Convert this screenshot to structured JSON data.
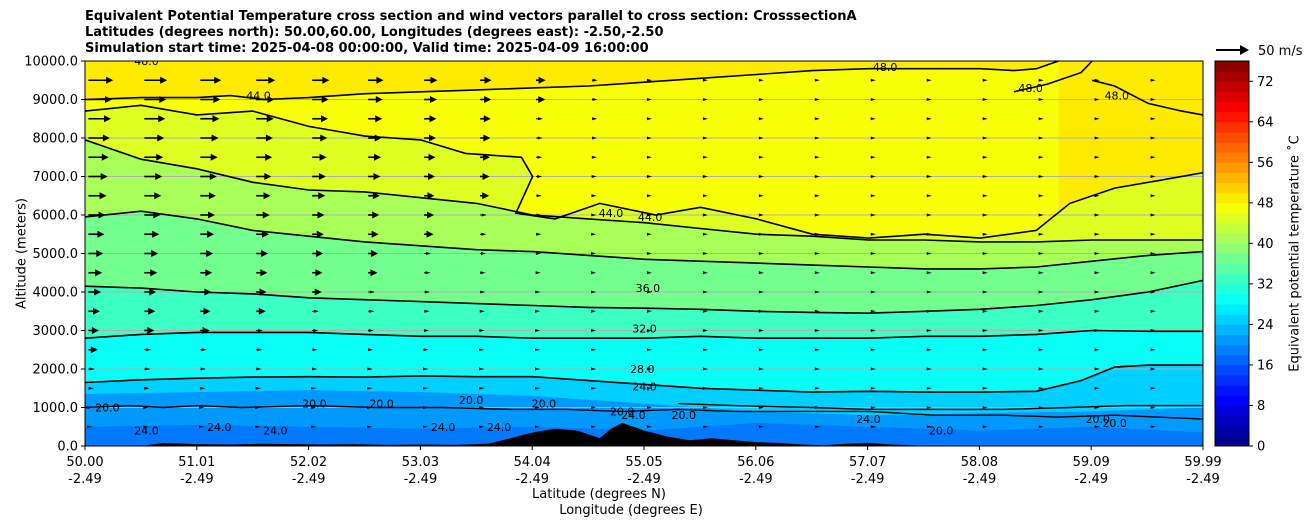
{
  "chart_data": {
    "type": "contourf",
    "title_lines": [
      "Equivalent Potential Temperature cross section and wind vectors parallel to cross section: CrosssectionA",
      "Latitudes (degrees north): 50.00,60.00, Longitudes (degrees east): -2.50,-2.50",
      "Simulation start time: 2025-04-08 00:00:00, Valid time: 2025-04-09 16:00:00"
    ],
    "ylabel": "Altitude (meters)",
    "xlabel_lines": [
      "Latitude (degrees N)",
      "Longitude (degrees E)"
    ],
    "ylim": [
      0,
      10000
    ],
    "xlim": [
      50.0,
      59.99
    ],
    "y_ticks": [
      "0.0",
      "1000.0",
      "2000.0",
      "3000.0",
      "4000.0",
      "5000.0",
      "6000.0",
      "7000.0",
      "8000.0",
      "9000.0",
      "10000.0"
    ],
    "x_ticks": [
      {
        "lat": "50.00",
        "lon": "-2.49"
      },
      {
        "lat": "51.01",
        "lon": "-2.49"
      },
      {
        "lat": "52.02",
        "lon": "-2.49"
      },
      {
        "lat": "53.03",
        "lon": "-2.49"
      },
      {
        "lat": "54.04",
        "lon": "-2.49"
      },
      {
        "lat": "55.05",
        "lon": "-2.49"
      },
      {
        "lat": "56.06",
        "lon": "-2.49"
      },
      {
        "lat": "57.07",
        "lon": "-2.49"
      },
      {
        "lat": "58.08",
        "lon": "-2.49"
      },
      {
        "lat": "59.09",
        "lon": "-2.49"
      },
      {
        "lat": "59.99",
        "lon": "-2.49"
      }
    ],
    "grid": "horizontal",
    "colorbar": {
      "label": "Equivalent potential temperature ˚C",
      "ticks": [
        "0",
        "8",
        "16",
        "24",
        "32",
        "40",
        "48",
        "56",
        "64",
        "72"
      ],
      "range": [
        0,
        76
      ],
      "colormap": "jet"
    },
    "quiver_key": {
      "label": "50 m/s"
    },
    "contour_levels_labeled": [
      {
        "text": "20.0",
        "x": 50.2,
        "alt": 1000
      },
      {
        "text": "24.0",
        "x": 50.55,
        "alt": 400
      },
      {
        "text": "24.0",
        "x": 51.2,
        "alt": 500
      },
      {
        "text": "24.0",
        "x": 51.7,
        "alt": 400
      },
      {
        "text": "20.0",
        "x": 52.05,
        "alt": 1100
      },
      {
        "text": "20.0",
        "x": 52.65,
        "alt": 1100
      },
      {
        "text": "24.0",
        "x": 53.2,
        "alt": 500
      },
      {
        "text": "20.0",
        "x": 53.45,
        "alt": 1200
      },
      {
        "text": "24.0",
        "x": 53.7,
        "alt": 500
      },
      {
        "text": "20.0",
        "x": 54.1,
        "alt": 1100
      },
      {
        "text": "20.0",
        "x": 54.8,
        "alt": 900
      },
      {
        "text": "24.0",
        "x": 54.9,
        "alt": 800
      },
      {
        "text": "20.0",
        "x": 55.35,
        "alt": 800
      },
      {
        "text": "24.0",
        "x": 57.0,
        "alt": 700
      },
      {
        "text": "20.0",
        "x": 57.65,
        "alt": 400
      },
      {
        "text": "20.0",
        "x": 59.05,
        "alt": 700
      },
      {
        "text": "20.0",
        "x": 59.2,
        "alt": 600
      },
      {
        "text": "24.0",
        "x": 55.0,
        "alt": 1550
      },
      {
        "text": "28.0",
        "x": 54.98,
        "alt": 2000
      },
      {
        "text": "32.0",
        "x": 55.0,
        "alt": 3050
      },
      {
        "text": "36.0",
        "x": 55.03,
        "alt": 4100
      },
      {
        "text": "44.0",
        "x": 54.7,
        "alt": 6050
      },
      {
        "text": "44.0",
        "x": 55.05,
        "alt": 5950
      },
      {
        "text": "44.0",
        "x": 51.55,
        "alt": 9100
      },
      {
        "text": "48.0",
        "x": 50.55,
        "alt": 10000
      },
      {
        "text": "48.0",
        "x": 57.15,
        "alt": 9850
      },
      {
        "text": "48.0",
        "x": 58.45,
        "alt": 9300
      },
      {
        "text": "48.0",
        "x": 59.22,
        "alt": 9100
      }
    ],
    "contour_lines": [
      {
        "level": 24,
        "points": [
          [
            50.0,
            1650
          ],
          [
            50.5,
            1720
          ],
          [
            51.0,
            1760
          ],
          [
            51.5,
            1790
          ],
          [
            52.0,
            1800
          ],
          [
            52.5,
            1790
          ],
          [
            53.0,
            1820
          ],
          [
            53.5,
            1800
          ],
          [
            54.0,
            1800
          ],
          [
            54.5,
            1700
          ],
          [
            55.0,
            1600
          ],
          [
            55.5,
            1500
          ],
          [
            56.0,
            1450
          ],
          [
            56.5,
            1400
          ],
          [
            57.0,
            1420
          ],
          [
            57.5,
            1400
          ],
          [
            58.0,
            1400
          ],
          [
            58.5,
            1420
          ],
          [
            58.9,
            1700
          ],
          [
            59.2,
            2050
          ],
          [
            59.5,
            2100
          ],
          [
            59.99,
            2100
          ]
        ]
      },
      {
        "level": 28,
        "points": [
          [
            50.0,
            2800
          ],
          [
            50.5,
            2900
          ],
          [
            51.0,
            2950
          ],
          [
            51.5,
            2950
          ],
          [
            52.0,
            2950
          ],
          [
            52.5,
            2900
          ],
          [
            53.0,
            2850
          ],
          [
            53.5,
            2850
          ],
          [
            54.0,
            2800
          ],
          [
            54.5,
            2800
          ],
          [
            55.0,
            2800
          ],
          [
            55.5,
            2850
          ],
          [
            56.0,
            2800
          ],
          [
            56.5,
            2800
          ],
          [
            57.0,
            2800
          ],
          [
            57.5,
            2850
          ],
          [
            58.0,
            2850
          ],
          [
            58.5,
            2900
          ],
          [
            59.0,
            3000
          ],
          [
            59.5,
            2980
          ],
          [
            59.99,
            2980
          ]
        ]
      },
      {
        "level": 32,
        "points": [
          [
            50.0,
            4150
          ],
          [
            50.5,
            4100
          ],
          [
            51.0,
            4000
          ],
          [
            51.5,
            3950
          ],
          [
            52.0,
            3850
          ],
          [
            52.5,
            3800
          ],
          [
            53.0,
            3750
          ],
          [
            53.5,
            3700
          ],
          [
            54.0,
            3650
          ],
          [
            54.5,
            3600
          ],
          [
            55.0,
            3580
          ],
          [
            55.5,
            3550
          ],
          [
            56.0,
            3500
          ],
          [
            56.5,
            3470
          ],
          [
            57.0,
            3450
          ],
          [
            57.5,
            3500
          ],
          [
            58.0,
            3550
          ],
          [
            58.5,
            3650
          ],
          [
            59.0,
            3800
          ],
          [
            59.5,
            4000
          ],
          [
            59.99,
            4300
          ]
        ]
      },
      {
        "level": 36,
        "points": [
          [
            50.0,
            5950
          ],
          [
            50.5,
            6100
          ],
          [
            51.0,
            5900
          ],
          [
            51.5,
            5600
          ],
          [
            52.0,
            5450
          ],
          [
            52.5,
            5300
          ],
          [
            53.0,
            5200
          ],
          [
            53.5,
            5100
          ],
          [
            54.0,
            5050
          ],
          [
            54.5,
            4950
          ],
          [
            55.0,
            4850
          ],
          [
            55.5,
            4800
          ],
          [
            56.0,
            4750
          ],
          [
            56.5,
            4700
          ],
          [
            57.0,
            4650
          ],
          [
            57.5,
            4600
          ],
          [
            58.0,
            4600
          ],
          [
            58.5,
            4650
          ],
          [
            59.0,
            4800
          ],
          [
            59.5,
            4950
          ],
          [
            59.99,
            5050
          ]
        ]
      },
      {
        "level": 40,
        "points": [
          [
            50.0,
            7950
          ],
          [
            50.5,
            7450
          ],
          [
            51.0,
            7200
          ],
          [
            51.5,
            6850
          ],
          [
            52.0,
            6650
          ],
          [
            52.5,
            6600
          ],
          [
            53.0,
            6450
          ],
          [
            53.5,
            6300
          ],
          [
            54.0,
            6000
          ],
          [
            54.5,
            5900
          ],
          [
            55.0,
            5800
          ],
          [
            55.5,
            5650
          ],
          [
            56.0,
            5500
          ],
          [
            56.5,
            5450
          ],
          [
            57.0,
            5350
          ],
          [
            57.5,
            5350
          ],
          [
            58.0,
            5300
          ],
          [
            58.5,
            5300
          ],
          [
            59.0,
            5350
          ],
          [
            59.5,
            5350
          ],
          [
            59.99,
            5350
          ]
        ]
      },
      {
        "level": 44,
        "points": [
          [
            50.0,
            8700
          ],
          [
            50.5,
            8850
          ],
          [
            51.0,
            8600
          ],
          [
            51.5,
            8700
          ],
          [
            52.0,
            8300
          ],
          [
            52.5,
            8050
          ],
          [
            53.0,
            7950
          ],
          [
            53.4,
            7600
          ],
          [
            53.9,
            7500
          ],
          [
            54.0,
            7000
          ],
          [
            53.85,
            6050
          ],
          [
            54.2,
            5900
          ],
          [
            54.6,
            6300
          ],
          [
            55.1,
            6000
          ],
          [
            55.5,
            6200
          ],
          [
            56.0,
            5900
          ],
          [
            56.5,
            5500
          ],
          [
            57.0,
            5400
          ],
          [
            57.5,
            5500
          ],
          [
            58.0,
            5400
          ],
          [
            58.5,
            5600
          ],
          [
            58.8,
            6300
          ],
          [
            59.2,
            6700
          ],
          [
            59.6,
            6900
          ],
          [
            59.99,
            7100
          ]
        ]
      },
      {
        "level": 48,
        "points": [
          [
            50.0,
            9000
          ],
          [
            50.5,
            9050
          ],
          [
            51.0,
            9050
          ],
          [
            51.3,
            9100
          ],
          [
            51.6,
            9000
          ],
          [
            52.0,
            9050
          ],
          [
            52.5,
            9150
          ],
          [
            53.0,
            9200
          ],
          [
            53.5,
            9250
          ],
          [
            54.0,
            9300
          ],
          [
            54.5,
            9350
          ],
          [
            55.0,
            9450
          ],
          [
            55.5,
            9550
          ],
          [
            56.0,
            9650
          ],
          [
            56.5,
            9750
          ],
          [
            57.0,
            9800
          ],
          [
            57.5,
            9800
          ],
          [
            58.0,
            9800
          ],
          [
            58.3,
            9750
          ],
          [
            58.5,
            9800
          ],
          [
            58.7,
            10000
          ]
        ]
      },
      {
        "level": 48,
        "points": [
          [
            58.3,
            9200
          ],
          [
            58.6,
            9400
          ],
          [
            58.9,
            9700
          ],
          [
            59.0,
            10000
          ]
        ]
      },
      {
        "level": 48,
        "points": [
          [
            59.0,
            9500
          ],
          [
            59.2,
            9350
          ],
          [
            59.5,
            8900
          ],
          [
            59.8,
            8700
          ],
          [
            59.99,
            8600
          ]
        ]
      }
    ],
    "terrain_profile": [
      [
        50.0,
        0
      ],
      [
        50.5,
        0
      ],
      [
        50.7,
        80
      ],
      [
        51.0,
        50
      ],
      [
        51.3,
        40
      ],
      [
        51.6,
        60
      ],
      [
        51.9,
        50
      ],
      [
        52.1,
        40
      ],
      [
        52.4,
        50
      ],
      [
        52.7,
        30
      ],
      [
        53.0,
        40
      ],
      [
        53.3,
        30
      ],
      [
        53.6,
        60
      ],
      [
        53.8,
        200
      ],
      [
        54.0,
        350
      ],
      [
        54.2,
        450
      ],
      [
        54.4,
        400
      ],
      [
        54.6,
        200
      ],
      [
        54.7,
        450
      ],
      [
        54.8,
        600
      ],
      [
        55.0,
        400
      ],
      [
        55.2,
        250
      ],
      [
        55.4,
        150
      ],
      [
        55.6,
        200
      ],
      [
        55.8,
        150
      ],
      [
        56.0,
        100
      ],
      [
        56.2,
        80
      ],
      [
        56.4,
        40
      ],
      [
        56.6,
        20
      ],
      [
        56.8,
        60
      ],
      [
        57.0,
        80
      ],
      [
        57.2,
        40
      ],
      [
        57.4,
        20
      ],
      [
        57.5,
        0
      ],
      [
        59.99,
        0
      ]
    ],
    "wind_vectors_note": "arrow length proportional to wind speed parallel to cross section"
  }
}
